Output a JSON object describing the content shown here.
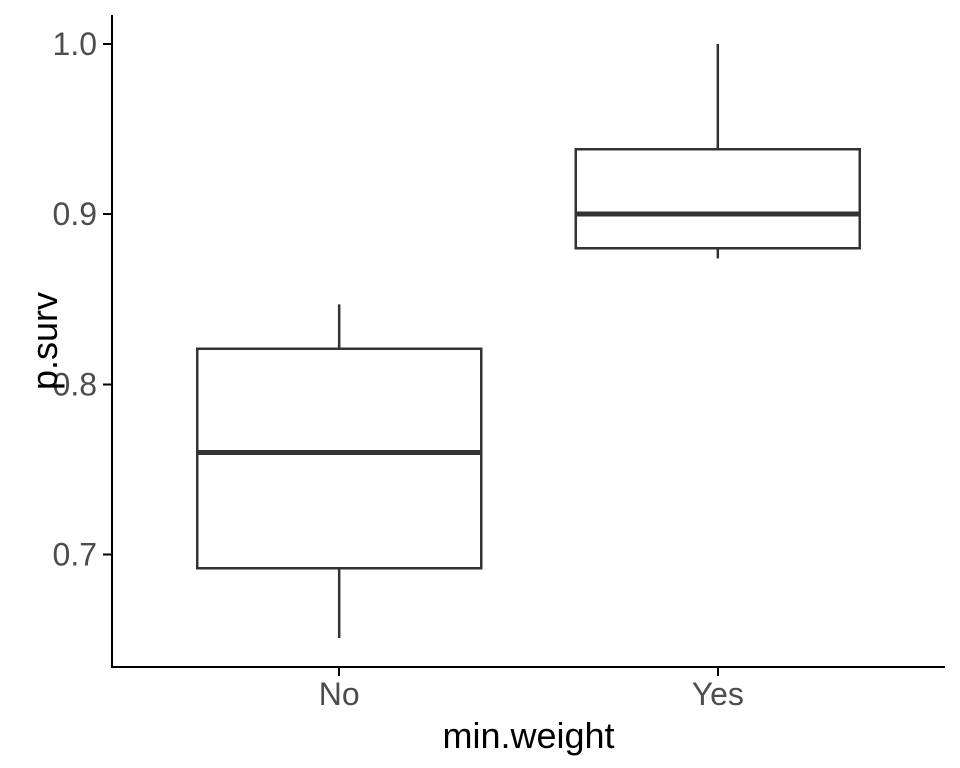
{
  "figure": {
    "background": "#ffffff"
  },
  "chart_data": {
    "type": "boxplot",
    "title": "",
    "xlabel": "min.weight",
    "ylabel": "p.surv",
    "categories": [
      "No",
      "Yes"
    ],
    "series": [
      {
        "name": "No",
        "whisker_low": 0.651,
        "q1": 0.692,
        "median": 0.76,
        "q3": 0.821,
        "whisker_high": 0.847
      },
      {
        "name": "Yes",
        "whisker_low": 0.874,
        "q1": 0.88,
        "median": 0.9,
        "q3": 0.938,
        "whisker_high": 1.0
      }
    ],
    "y_tick_values": [
      0.7,
      0.8,
      0.9,
      1.0
    ],
    "y_tick_labels": [
      "0.7",
      "0.8",
      "0.9",
      "1.0"
    ],
    "ylim": [
      0.634,
      1.017
    ],
    "grid": false,
    "legend": "none",
    "colors": {
      "background": "#ffffff",
      "box_fill": "#ffffff",
      "box_stroke": "#333333",
      "axis_line": "#000000",
      "tick_mark": "#000000",
      "tick_label": "#4d4d4d",
      "axis_title": "#000000"
    }
  }
}
